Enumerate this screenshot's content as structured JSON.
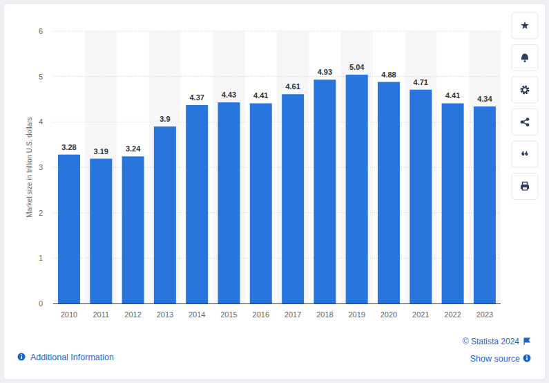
{
  "chart_data": {
    "type": "bar",
    "y_label": "Market size in trillion U.S. dollars",
    "categories": [
      "2010",
      "2011",
      "2012",
      "2013",
      "2014",
      "2015",
      "2016",
      "2017",
      "2018",
      "2019",
      "2020",
      "2021",
      "2022",
      "2023"
    ],
    "values": [
      3.28,
      3.19,
      3.24,
      3.9,
      4.37,
      4.43,
      4.41,
      4.61,
      4.93,
      5.04,
      4.88,
      4.71,
      4.41,
      4.34
    ],
    "color": "#2876dd",
    "ylim": [
      0,
      6
    ],
    "yticks": [
      0,
      1,
      2,
      3,
      4,
      5,
      6
    ],
    "grid": true,
    "data_labels": true,
    "annotations": [
      "© Statista 2024",
      "Additional Information",
      "Show source"
    ]
  }
}
